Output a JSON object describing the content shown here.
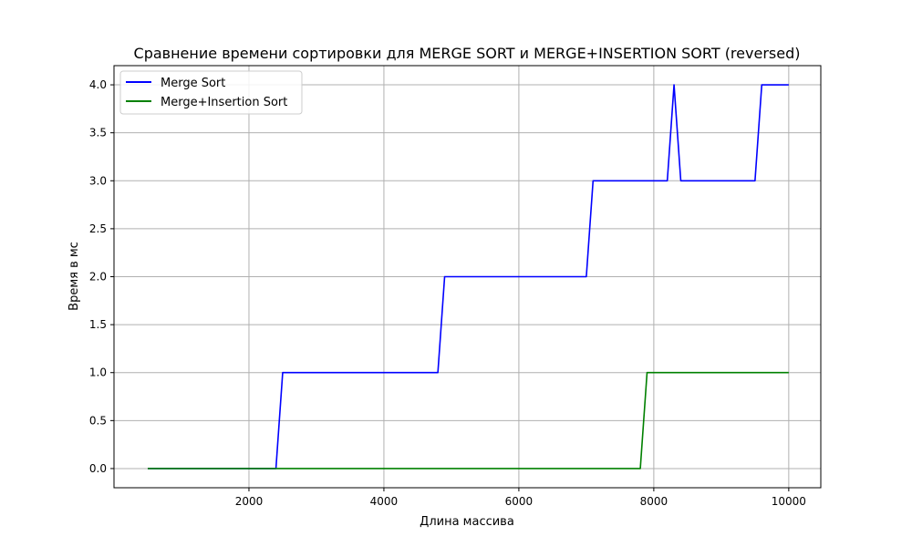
{
  "chart_data": {
    "type": "line",
    "title": "Сравнение времени сортировки для MERGE SORT и MERGE+INSERTION SORT (reversed)",
    "xlabel": "Длина массива",
    "ylabel": "Время в мс",
    "xlim": [
      0,
      10475
    ],
    "ylim": [
      -0.2,
      4.2
    ],
    "xticks": [
      2000,
      4000,
      6000,
      8000,
      10000
    ],
    "yticks": [
      0.0,
      0.5,
      1.0,
      1.5,
      2.0,
      2.5,
      3.0,
      3.5,
      4.0
    ],
    "xtick_labels": [
      "2000",
      "4000",
      "6000",
      "8000",
      "10000"
    ],
    "ytick_labels": [
      "0.0",
      "0.5",
      "1.0",
      "1.5",
      "2.0",
      "2.5",
      "3.0",
      "3.5",
      "4.0"
    ],
    "grid": true,
    "legend_position": "top-left",
    "series": [
      {
        "name": "Merge Sort",
        "color": "#0000ff",
        "x": [
          500,
          2400,
          2500,
          4800,
          4900,
          7000,
          7100,
          8200,
          8300,
          8400,
          9500,
          9600,
          10000
        ],
        "y": [
          0,
          0,
          1,
          1,
          2,
          2,
          3,
          3,
          4,
          3,
          3,
          4,
          4
        ]
      },
      {
        "name": "Merge+Insertion Sort",
        "color": "#008000",
        "x": [
          500,
          7800,
          7900,
          10000
        ],
        "y": [
          0,
          0,
          1,
          1
        ]
      }
    ]
  }
}
